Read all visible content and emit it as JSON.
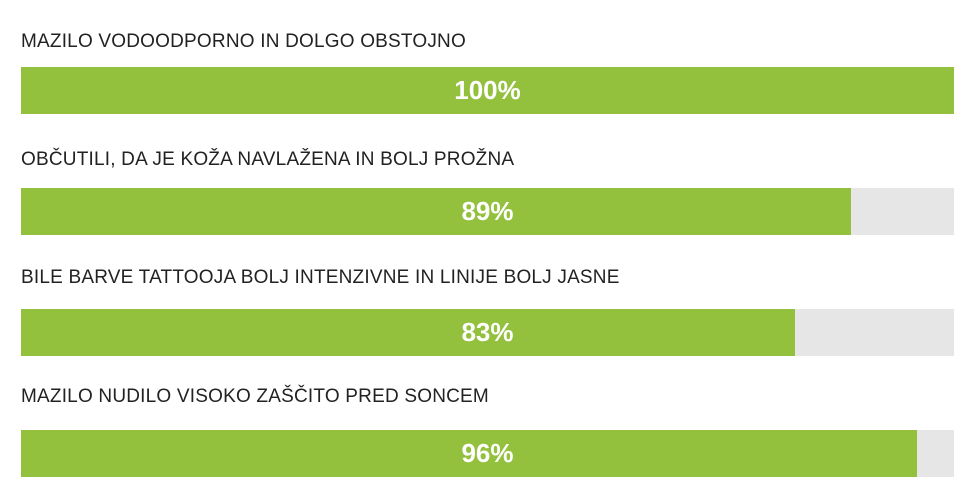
{
  "chart_data": {
    "type": "bar",
    "orientation": "horizontal",
    "categories": [
      "MAZILO VODOODPORNO IN DOLGO OBSTOJNO",
      "OBČUTILI, DA JE KOŽA NAVLAŽENA IN BOLJ PROŽNA",
      "BILE BARVE TATTOOJA BOLJ INTENZIVNE IN LINIJE BOLJ JASNE",
      "MAZILO NUDILO VISOKO ZAŠČITO PRED SONCEM"
    ],
    "values": [
      100,
      89,
      83,
      96
    ],
    "value_labels": [
      "100%",
      "89%",
      "83%",
      "96%"
    ],
    "xlim": [
      0,
      100
    ],
    "grid": false,
    "colors": {
      "bar": "#93c13e",
      "track": "#e6e6e6",
      "label": "#222222",
      "value_text": "#ffffff"
    }
  }
}
